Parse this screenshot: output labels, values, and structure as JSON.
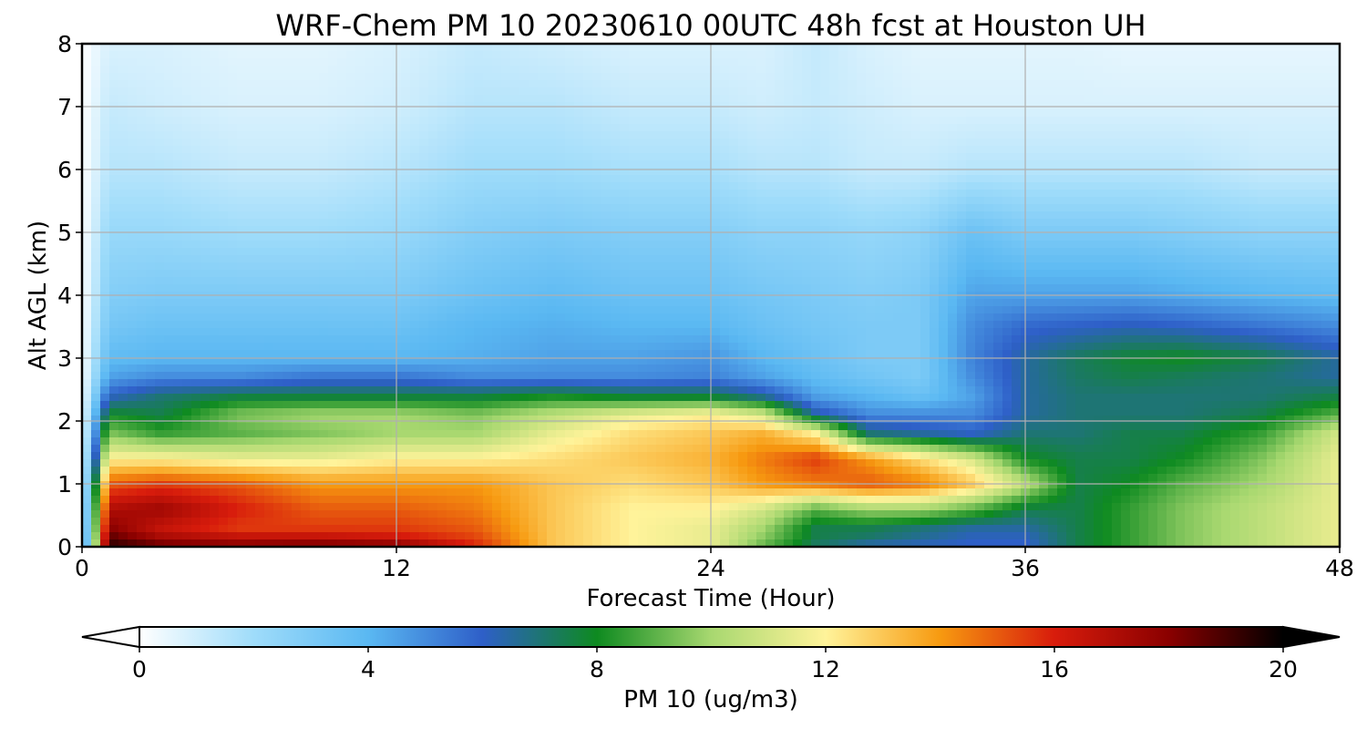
{
  "chart_data": {
    "type": "heatmap",
    "title": "WRF-Chem PM 10  20230610 00UTC 48h fcst at Houston UH",
    "xlabel": "Forecast Time (Hour)",
    "ylabel": "Alt AGL (km)",
    "xlim": [
      0,
      48
    ],
    "ylim": [
      0,
      8
    ],
    "x_ticks": [
      0,
      12,
      24,
      36,
      48
    ],
    "y_ticks": [
      0,
      1,
      2,
      3,
      4,
      5,
      6,
      7,
      8
    ],
    "grid": true,
    "colorbar": {
      "label": "PM 10  (ug/m3)",
      "range": [
        0,
        20
      ],
      "ticks": [
        0,
        4,
        8,
        12,
        16,
        20
      ],
      "extend": "both",
      "colors": [
        "#ffffff",
        "#9fdcfa",
        "#5ab8f2",
        "#2e5fc8",
        "#0e8a20",
        "#a8d870",
        "#fff39a",
        "#f79a10",
        "#d81c0c",
        "#8a0000",
        "#000000"
      ]
    },
    "x": [
      0,
      1,
      3,
      6,
      9,
      12,
      15,
      18,
      21,
      24,
      26,
      28,
      30,
      32,
      34,
      36,
      38,
      40,
      42,
      45,
      48
    ],
    "y": [
      0,
      0.1,
      0.3,
      0.6,
      1.0,
      1.4,
      1.8,
      2.1,
      2.4,
      2.7,
      3.0,
      3.5,
      4.0,
      5.0,
      6.0,
      7.0,
      8.0
    ],
    "z": [
      [
        0,
        19.5,
        19,
        18.5,
        19,
        18.8,
        16,
        13,
        12,
        11.5,
        9,
        7,
        6,
        6,
        6,
        6,
        7.5,
        8.5,
        9.5,
        10.5,
        11.5
      ],
      [
        0,
        19,
        17.5,
        17,
        17,
        16.5,
        15.5,
        13,
        12,
        11.5,
        9.5,
        7.5,
        7,
        6.5,
        6,
        6,
        7.5,
        8.5,
        9.5,
        10.5,
        11.5
      ],
      [
        0,
        18,
        16.5,
        15.5,
        15.5,
        15.5,
        15,
        13,
        12,
        11.5,
        10,
        7.5,
        7.5,
        7,
        6.5,
        6.5,
        7.5,
        8.5,
        9.5,
        10.5,
        11.5
      ],
      [
        0,
        17,
        17.5,
        16,
        15,
        15,
        14.5,
        13,
        12,
        12,
        11,
        9,
        10,
        10,
        9,
        7.5,
        7.5,
        8.5,
        9.5,
        10.5,
        11.5
      ],
      [
        0,
        15,
        15.5,
        15,
        14,
        14,
        14,
        13,
        12.5,
        13,
        14,
        14.5,
        15,
        14.5,
        13,
        10.5,
        7.5,
        8,
        9,
        10,
        11.5
      ],
      [
        0,
        12,
        12,
        11.5,
        11.5,
        12,
        12,
        12.5,
        13,
        13.5,
        14.5,
        15.5,
        14,
        12.5,
        11,
        8,
        7.5,
        7.5,
        8,
        9.5,
        11.5
      ],
      [
        0,
        9.5,
        8.5,
        9,
        9.5,
        10,
        10,
        11.5,
        12.5,
        13,
        13.5,
        12,
        7,
        6.5,
        6,
        7,
        7,
        7.5,
        7.5,
        8.5,
        11
      ],
      [
        0,
        8,
        7.5,
        9.5,
        10,
        10,
        9.5,
        10.5,
        11.5,
        12,
        11,
        6.5,
        5,
        5,
        5,
        6.5,
        7,
        7,
        7,
        7.5,
        9
      ],
      [
        0,
        6,
        7,
        7.5,
        7.5,
        7.5,
        7.5,
        8,
        7.5,
        7.5,
        6.5,
        4.5,
        4,
        3.5,
        4.5,
        6.5,
        7,
        7,
        7,
        7,
        7.5
      ],
      [
        0,
        4.5,
        5,
        5,
        5.5,
        5.5,
        5,
        5,
        5,
        5.2,
        4.5,
        3.8,
        3.3,
        3,
        5,
        6.5,
        7.2,
        7.5,
        7.3,
        7,
        6.5
      ],
      [
        0,
        3.8,
        4,
        4,
        4,
        4,
        4.2,
        4.5,
        4.5,
        4.8,
        4,
        3.5,
        3,
        3,
        5.2,
        6.5,
        7.3,
        7.8,
        8,
        7.5,
        6.5
      ],
      [
        0,
        3.2,
        3.5,
        3.5,
        3.5,
        3.5,
        4,
        4.2,
        4,
        4,
        3.5,
        3.2,
        3,
        3,
        5,
        5.8,
        6,
        6.2,
        6,
        5.5,
        5
      ],
      [
        0,
        2.8,
        3,
        3,
        3,
        3,
        3.5,
        3.8,
        3.5,
        3.5,
        3.2,
        3,
        2.8,
        3,
        4.5,
        4.5,
        4.5,
        4.5,
        4.3,
        4,
        3.8
      ],
      [
        0,
        2.2,
        2.2,
        2,
        2,
        2.2,
        2.8,
        3,
        2.8,
        2.8,
        2.5,
        2.5,
        2.3,
        2.5,
        3.5,
        3,
        3,
        3,
        2.8,
        2.5,
        2.5
      ],
      [
        0,
        1.5,
        1.5,
        1.2,
        1.2,
        1.5,
        2,
        2,
        1.8,
        1.8,
        1.5,
        1.5,
        1.2,
        1.2,
        1.5,
        1.5,
        1.5,
        1.5,
        1.5,
        1.2,
        1.2
      ],
      [
        0,
        1.2,
        1,
        0.8,
        0.8,
        1,
        1.5,
        1.5,
        1.2,
        1.2,
        1,
        1.2,
        1,
        0.8,
        0.8,
        0.8,
        0.8,
        0.8,
        0.8,
        0.8,
        0.8
      ],
      [
        0,
        0.8,
        0.8,
        0.6,
        0.6,
        0.8,
        1.2,
        1,
        0.8,
        0.8,
        0.8,
        1.2,
        0.8,
        0.6,
        0.6,
        0.6,
        0.6,
        0.5,
        0.5,
        0.5,
        0.5
      ]
    ]
  }
}
